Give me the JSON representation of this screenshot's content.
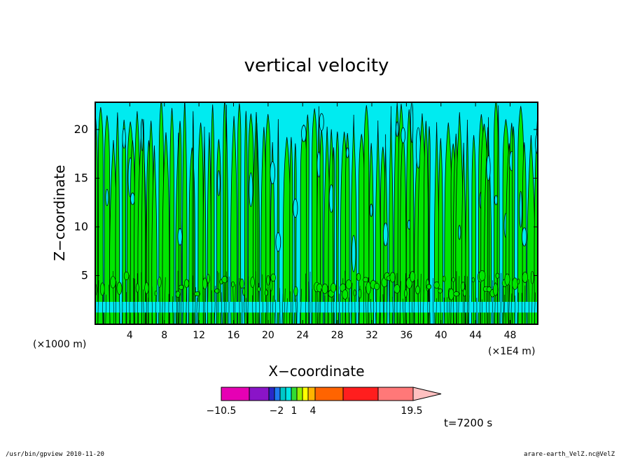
{
  "chart_data": {
    "type": "heatmap",
    "title": "vertical velocity",
    "xlabel": "X−coordinate",
    "ylabel": "Z−coordinate",
    "x_unit_left": "(×1000 m)",
    "x_unit_right": "(×1E4 m)",
    "x_ticks": [
      "4",
      "8",
      "12",
      "16",
      "20",
      "24",
      "28",
      "32",
      "36",
      "40",
      "44",
      "48"
    ],
    "x_tick_values": [
      4,
      8,
      12,
      16,
      20,
      24,
      28,
      32,
      36,
      40,
      44,
      48
    ],
    "y_ticks": [
      "5",
      "10",
      "15",
      "20"
    ],
    "y_tick_values": [
      5,
      10,
      15,
      20
    ],
    "xlim": [
      0,
      51.2
    ],
    "ylim": [
      0,
      22.8
    ],
    "colorbar": {
      "levels_labels": [
        "−10.5",
        "−2",
        "1",
        "4",
        "19.5"
      ],
      "level_values": [
        -10.5,
        -2,
        1,
        4,
        19.5
      ],
      "colors": [
        "#e600b4",
        "#8a14c8",
        "#2828c8",
        "#1e78f0",
        "#00c8c8",
        "#00e6e6",
        "#32dc32",
        "#96f000",
        "#ffff00",
        "#ffb400",
        "#ff6400",
        "#ff1e1e",
        "#ff7878"
      ],
      "dominant_fill_colors": [
        "#00ebf0",
        "#00e600"
      ]
    },
    "time_label": "t=7200 s"
  },
  "footer": {
    "left": "/usr/bin/gpview  2010-11-20",
    "right": "arare-earth_VelZ.nc@VelZ"
  }
}
